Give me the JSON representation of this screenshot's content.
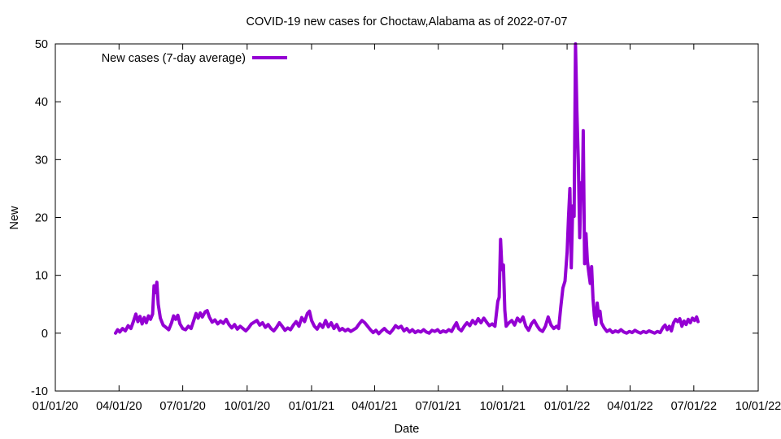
{
  "chart_data": {
    "type": "line",
    "title": "COVID-19 new cases for Choctaw,Alabama as of 2022-07-07",
    "xlabel": "Date",
    "ylabel": "New",
    "xlim": [
      "2020-01-01",
      "2022-10-01"
    ],
    "ylim": [
      -10,
      50
    ],
    "x_ticks": [
      {
        "date": "2020-01-01",
        "label": "01/01/20"
      },
      {
        "date": "2020-04-01",
        "label": "04/01/20"
      },
      {
        "date": "2020-07-01",
        "label": "07/01/20"
      },
      {
        "date": "2020-10-01",
        "label": "10/01/20"
      },
      {
        "date": "2021-01-01",
        "label": "01/01/21"
      },
      {
        "date": "2021-04-01",
        "label": "04/01/21"
      },
      {
        "date": "2021-07-01",
        "label": "07/01/21"
      },
      {
        "date": "2021-10-01",
        "label": "10/01/21"
      },
      {
        "date": "2022-01-01",
        "label": "01/01/22"
      },
      {
        "date": "2022-04-01",
        "label": "04/01/22"
      },
      {
        "date": "2022-07-01",
        "label": "07/01/22"
      },
      {
        "date": "2022-10-01",
        "label": "10/01/22"
      }
    ],
    "y_ticks": [
      -10,
      0,
      10,
      20,
      30,
      40,
      50
    ],
    "grid": false,
    "legend_position": "top-left",
    "series": [
      {
        "name": "New cases (7-day average)",
        "color": "#9400d3",
        "points": [
          [
            "2020-03-27",
            0.0
          ],
          [
            "2020-03-30",
            0.6
          ],
          [
            "2020-04-02",
            0.2
          ],
          [
            "2020-04-06",
            0.8
          ],
          [
            "2020-04-10",
            0.4
          ],
          [
            "2020-04-14",
            1.3
          ],
          [
            "2020-04-18",
            0.8
          ],
          [
            "2020-04-22",
            2.2
          ],
          [
            "2020-04-25",
            3.3
          ],
          [
            "2020-04-28",
            2.0
          ],
          [
            "2020-05-01",
            2.9
          ],
          [
            "2020-05-04",
            1.6
          ],
          [
            "2020-05-07",
            2.7
          ],
          [
            "2020-05-10",
            1.8
          ],
          [
            "2020-05-13",
            3.0
          ],
          [
            "2020-05-16",
            2.4
          ],
          [
            "2020-05-19",
            3.3
          ],
          [
            "2020-05-21",
            8.2
          ],
          [
            "2020-05-23",
            7.0
          ],
          [
            "2020-05-25",
            8.8
          ],
          [
            "2020-05-27",
            5.0
          ],
          [
            "2020-05-30",
            2.6
          ],
          [
            "2020-06-03",
            1.4
          ],
          [
            "2020-06-07",
            1.0
          ],
          [
            "2020-06-11",
            0.6
          ],
          [
            "2020-06-15",
            1.8
          ],
          [
            "2020-06-18",
            3.0
          ],
          [
            "2020-06-21",
            2.4
          ],
          [
            "2020-06-24",
            3.1
          ],
          [
            "2020-06-27",
            1.6
          ],
          [
            "2020-07-01",
            0.8
          ],
          [
            "2020-07-05",
            0.6
          ],
          [
            "2020-07-09",
            1.2
          ],
          [
            "2020-07-13",
            0.8
          ],
          [
            "2020-07-17",
            2.3
          ],
          [
            "2020-07-20",
            3.4
          ],
          [
            "2020-07-23",
            2.6
          ],
          [
            "2020-07-26",
            3.5
          ],
          [
            "2020-07-29",
            2.8
          ],
          [
            "2020-08-02",
            3.7
          ],
          [
            "2020-08-05",
            3.9
          ],
          [
            "2020-08-08",
            2.8
          ],
          [
            "2020-08-12",
            1.9
          ],
          [
            "2020-08-16",
            2.3
          ],
          [
            "2020-08-20",
            1.6
          ],
          [
            "2020-08-24",
            2.1
          ],
          [
            "2020-08-28",
            1.7
          ],
          [
            "2020-09-01",
            2.4
          ],
          [
            "2020-09-05",
            1.5
          ],
          [
            "2020-09-09",
            0.9
          ],
          [
            "2020-09-13",
            1.5
          ],
          [
            "2020-09-17",
            0.7
          ],
          [
            "2020-09-21",
            1.2
          ],
          [
            "2020-09-25",
            0.8
          ],
          [
            "2020-09-29",
            0.4
          ],
          [
            "2020-10-03",
            0.9
          ],
          [
            "2020-10-07",
            1.6
          ],
          [
            "2020-10-11",
            1.9
          ],
          [
            "2020-10-15",
            2.2
          ],
          [
            "2020-10-19",
            1.4
          ],
          [
            "2020-10-23",
            1.8
          ],
          [
            "2020-10-27",
            1.0
          ],
          [
            "2020-10-31",
            1.5
          ],
          [
            "2020-11-04",
            0.8
          ],
          [
            "2020-11-08",
            0.4
          ],
          [
            "2020-11-12",
            1.0
          ],
          [
            "2020-11-16",
            1.8
          ],
          [
            "2020-11-20",
            1.2
          ],
          [
            "2020-11-24",
            0.5
          ],
          [
            "2020-11-28",
            0.9
          ],
          [
            "2020-12-02",
            0.6
          ],
          [
            "2020-12-06",
            1.4
          ],
          [
            "2020-12-10",
            2.0
          ],
          [
            "2020-12-14",
            1.2
          ],
          [
            "2020-12-18",
            2.7
          ],
          [
            "2020-12-22",
            2.0
          ],
          [
            "2020-12-26",
            3.4
          ],
          [
            "2020-12-29",
            3.8
          ],
          [
            "2021-01-01",
            2.2
          ],
          [
            "2021-01-05",
            1.2
          ],
          [
            "2021-01-09",
            0.7
          ],
          [
            "2021-01-13",
            1.6
          ],
          [
            "2021-01-17",
            1.0
          ],
          [
            "2021-01-21",
            2.2
          ],
          [
            "2021-01-25",
            1.1
          ],
          [
            "2021-01-29",
            1.8
          ],
          [
            "2021-02-02",
            0.8
          ],
          [
            "2021-02-06",
            1.5
          ],
          [
            "2021-02-10",
            0.5
          ],
          [
            "2021-02-14",
            0.8
          ],
          [
            "2021-02-18",
            0.4
          ],
          [
            "2021-02-22",
            0.7
          ],
          [
            "2021-02-26",
            0.3
          ],
          [
            "2021-03-02",
            0.6
          ],
          [
            "2021-03-06",
            0.9
          ],
          [
            "2021-03-10",
            1.6
          ],
          [
            "2021-03-14",
            2.2
          ],
          [
            "2021-03-18",
            1.8
          ],
          [
            "2021-03-22",
            1.2
          ],
          [
            "2021-03-26",
            0.6
          ],
          [
            "2021-03-30",
            0.1
          ],
          [
            "2021-04-03",
            0.5
          ],
          [
            "2021-04-07",
            -0.1
          ],
          [
            "2021-04-11",
            0.4
          ],
          [
            "2021-04-15",
            0.8
          ],
          [
            "2021-04-19",
            0.3
          ],
          [
            "2021-04-23",
            0.0
          ],
          [
            "2021-04-27",
            0.6
          ],
          [
            "2021-05-01",
            1.3
          ],
          [
            "2021-05-05",
            0.9
          ],
          [
            "2021-05-09",
            1.2
          ],
          [
            "2021-05-13",
            0.4
          ],
          [
            "2021-05-17",
            0.8
          ],
          [
            "2021-05-21",
            0.2
          ],
          [
            "2021-05-25",
            0.6
          ],
          [
            "2021-05-29",
            0.1
          ],
          [
            "2021-06-02",
            0.4
          ],
          [
            "2021-06-06",
            0.2
          ],
          [
            "2021-06-10",
            0.6
          ],
          [
            "2021-06-14",
            0.2
          ],
          [
            "2021-06-18",
            0.0
          ],
          [
            "2021-06-22",
            0.5
          ],
          [
            "2021-06-26",
            0.3
          ],
          [
            "2021-06-30",
            0.6
          ],
          [
            "2021-07-04",
            0.1
          ],
          [
            "2021-07-08",
            0.4
          ],
          [
            "2021-07-12",
            0.2
          ],
          [
            "2021-07-16",
            0.6
          ],
          [
            "2021-07-20",
            0.3
          ],
          [
            "2021-07-24",
            1.2
          ],
          [
            "2021-07-27",
            1.8
          ],
          [
            "2021-07-30",
            0.8
          ],
          [
            "2021-08-03",
            0.4
          ],
          [
            "2021-08-07",
            1.2
          ],
          [
            "2021-08-11",
            1.8
          ],
          [
            "2021-08-15",
            1.3
          ],
          [
            "2021-08-19",
            2.2
          ],
          [
            "2021-08-23",
            1.6
          ],
          [
            "2021-08-27",
            2.5
          ],
          [
            "2021-08-31",
            1.8
          ],
          [
            "2021-09-04",
            2.6
          ],
          [
            "2021-09-08",
            1.9
          ],
          [
            "2021-09-12",
            1.3
          ],
          [
            "2021-09-16",
            1.6
          ],
          [
            "2021-09-20",
            1.2
          ],
          [
            "2021-09-24",
            5.5
          ],
          [
            "2021-09-26",
            6.2
          ],
          [
            "2021-09-28",
            16.2
          ],
          [
            "2021-09-30",
            11.0
          ],
          [
            "2021-10-02",
            11.8
          ],
          [
            "2021-10-04",
            4.0
          ],
          [
            "2021-10-06",
            1.2
          ],
          [
            "2021-10-10",
            1.8
          ],
          [
            "2021-10-14",
            2.2
          ],
          [
            "2021-10-18",
            1.4
          ],
          [
            "2021-10-22",
            2.6
          ],
          [
            "2021-10-26",
            2.0
          ],
          [
            "2021-10-30",
            2.8
          ],
          [
            "2021-11-03",
            1.2
          ],
          [
            "2021-11-07",
            0.5
          ],
          [
            "2021-11-11",
            1.6
          ],
          [
            "2021-11-15",
            2.2
          ],
          [
            "2021-11-19",
            1.3
          ],
          [
            "2021-11-23",
            0.6
          ],
          [
            "2021-11-27",
            0.3
          ],
          [
            "2021-12-01",
            1.2
          ],
          [
            "2021-12-05",
            2.8
          ],
          [
            "2021-12-09",
            1.4
          ],
          [
            "2021-12-13",
            0.8
          ],
          [
            "2021-12-17",
            1.2
          ],
          [
            "2021-12-20",
            0.8
          ],
          [
            "2021-12-23",
            4.5
          ],
          [
            "2021-12-26",
            7.8
          ],
          [
            "2021-12-29",
            9.0
          ],
          [
            "2022-01-01",
            14.0
          ],
          [
            "2022-01-03",
            20.0
          ],
          [
            "2022-01-05",
            25.0
          ],
          [
            "2022-01-07",
            11.3
          ],
          [
            "2022-01-09",
            22.0
          ],
          [
            "2022-01-11",
            20.2
          ],
          [
            "2022-01-13",
            50.0
          ],
          [
            "2022-01-15",
            38.5
          ],
          [
            "2022-01-17",
            30.0
          ],
          [
            "2022-01-19",
            16.5
          ],
          [
            "2022-01-21",
            26.0
          ],
          [
            "2022-01-23",
            25.0
          ],
          [
            "2022-01-24",
            35.0
          ],
          [
            "2022-01-26",
            12.0
          ],
          [
            "2022-01-28",
            17.2
          ],
          [
            "2022-01-30",
            12.5
          ],
          [
            "2022-02-01",
            10.5
          ],
          [
            "2022-02-03",
            8.6
          ],
          [
            "2022-02-05",
            11.5
          ],
          [
            "2022-02-07",
            6.0
          ],
          [
            "2022-02-09",
            3.0
          ],
          [
            "2022-02-11",
            1.5
          ],
          [
            "2022-02-13",
            5.2
          ],
          [
            "2022-02-15",
            3.0
          ],
          [
            "2022-02-17",
            3.8
          ],
          [
            "2022-02-19",
            1.8
          ],
          [
            "2022-02-23",
            0.9
          ],
          [
            "2022-02-27",
            0.3
          ],
          [
            "2022-03-03",
            0.6
          ],
          [
            "2022-03-07",
            0.1
          ],
          [
            "2022-03-11",
            0.4
          ],
          [
            "2022-03-15",
            0.2
          ],
          [
            "2022-03-19",
            0.6
          ],
          [
            "2022-03-23",
            0.2
          ],
          [
            "2022-03-27",
            0.0
          ],
          [
            "2022-03-31",
            0.3
          ],
          [
            "2022-04-04",
            0.1
          ],
          [
            "2022-04-08",
            0.5
          ],
          [
            "2022-04-12",
            0.2
          ],
          [
            "2022-04-16",
            0.0
          ],
          [
            "2022-04-20",
            0.3
          ],
          [
            "2022-04-24",
            0.1
          ],
          [
            "2022-04-28",
            0.4
          ],
          [
            "2022-05-02",
            0.2
          ],
          [
            "2022-05-06",
            0.0
          ],
          [
            "2022-05-10",
            0.3
          ],
          [
            "2022-05-14",
            0.1
          ],
          [
            "2022-05-18",
            1.0
          ],
          [
            "2022-05-21",
            1.4
          ],
          [
            "2022-05-24",
            0.6
          ],
          [
            "2022-05-27",
            1.2
          ],
          [
            "2022-05-30",
            0.4
          ],
          [
            "2022-06-02",
            1.8
          ],
          [
            "2022-06-05",
            2.4
          ],
          [
            "2022-06-08",
            2.0
          ],
          [
            "2022-06-11",
            2.5
          ],
          [
            "2022-06-14",
            1.2
          ],
          [
            "2022-06-17",
            2.1
          ],
          [
            "2022-06-20",
            1.5
          ],
          [
            "2022-06-23",
            2.4
          ],
          [
            "2022-06-26",
            1.8
          ],
          [
            "2022-06-29",
            2.6
          ],
          [
            "2022-07-02",
            2.2
          ],
          [
            "2022-07-05",
            2.8
          ],
          [
            "2022-07-07",
            2.0
          ]
        ]
      }
    ]
  }
}
